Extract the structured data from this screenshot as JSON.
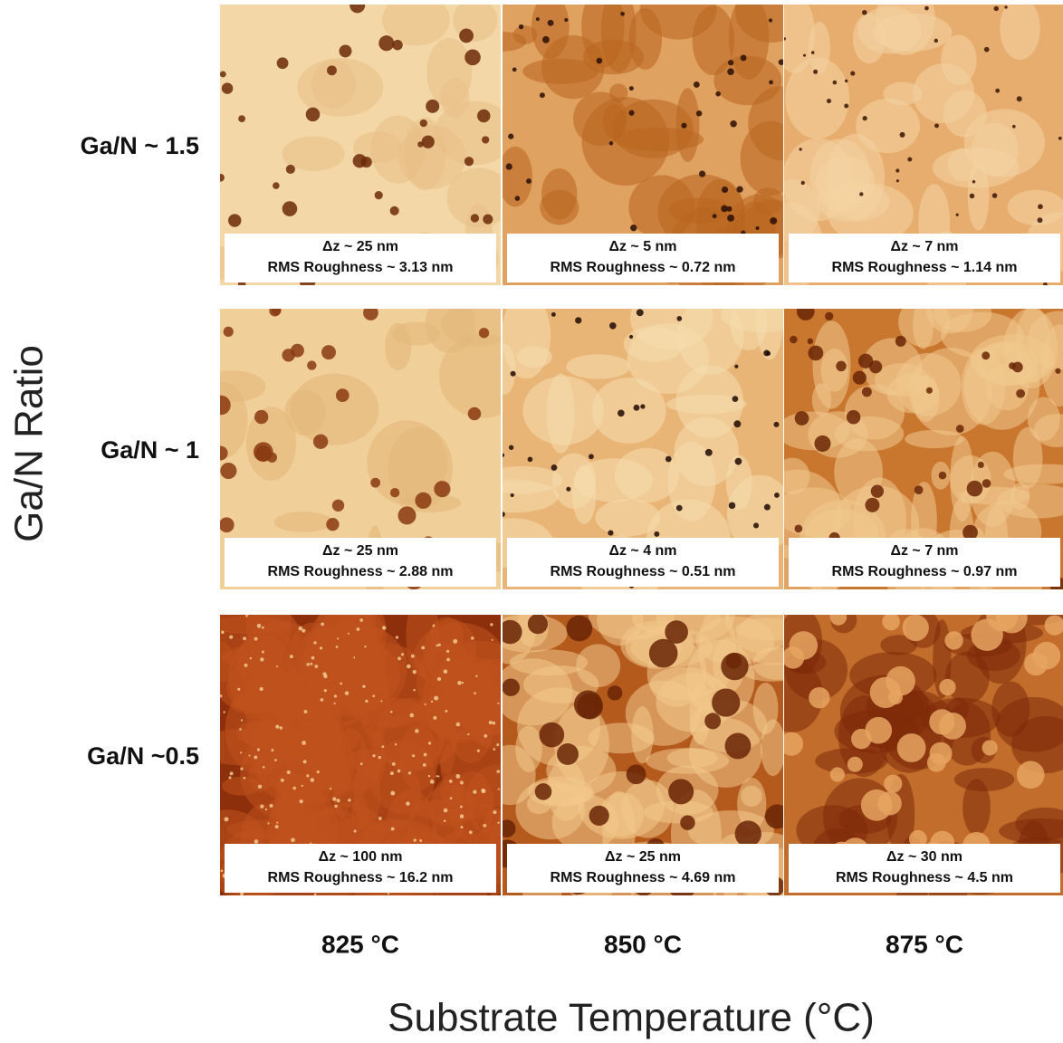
{
  "y_axis_label": "Ga/N Ratio",
  "x_axis_label": "Substrate Temperature (°C)",
  "columns": [
    "825 °C",
    "850 °C",
    "875 °C"
  ],
  "rows": [
    {
      "label": "Ga/N ~ 1.5",
      "cells": [
        {
          "dz": "Δz ~ 25 nm",
          "rms": "RMS Roughness ~ 3.13 nm"
        },
        {
          "dz": "Δz ~ 5 nm",
          "rms": "RMS Roughness ~ 0.72 nm"
        },
        {
          "dz": "Δz ~ 7 nm",
          "rms": "RMS Roughness ~ 1.14 nm"
        }
      ]
    },
    {
      "label": "Ga/N ~ 1",
      "cells": [
        {
          "dz": "Δz ~ 25 nm",
          "rms": "RMS Roughness ~ 2.88 nm"
        },
        {
          "dz": "Δz ~ 4 nm",
          "rms": "RMS Roughness ~ 0.51 nm"
        },
        {
          "dz": "Δz ~ 7 nm",
          "rms": "RMS Roughness ~ 0.97 nm"
        }
      ]
    },
    {
      "label": "Ga/N ~0.5",
      "cells": [
        {
          "dz": "Δz ~ 100 nm",
          "rms": "RMS Roughness ~ 16.2 nm"
        },
        {
          "dz": "Δz ~ 25 nm",
          "rms": "RMS Roughness ~ 4.69 nm"
        },
        {
          "dz": "Δz ~ 30 nm",
          "rms": "RMS Roughness ~ 4.5 nm"
        }
      ]
    }
  ]
}
